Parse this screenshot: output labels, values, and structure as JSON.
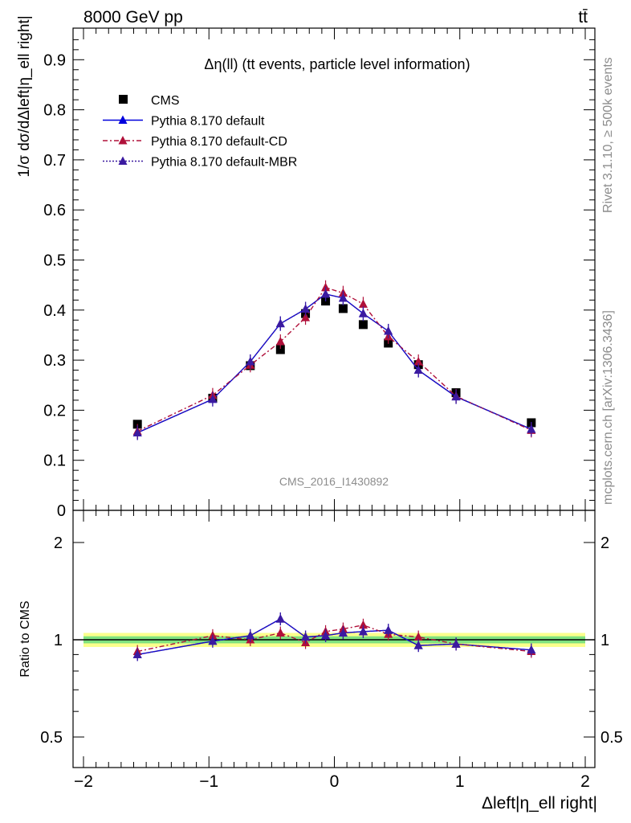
{
  "header": {
    "energy_label": "8000 GeV pp",
    "process_label": "tt̄"
  },
  "side_labels": {
    "rivet": "Rivet 3.1.10, ≥ 500k events",
    "mcplots": "mcplots.cern.ch [arXiv:1306.3436]"
  },
  "colors": {
    "data": "#000000",
    "default": "#0000dd",
    "cd": "#b0103a",
    "mbr": "#3b1aa0",
    "band_inner": "#7fe27f",
    "band_outer": "#fbff8c"
  },
  "chart_data": [
    {
      "type": "scatter",
      "title": "Δη(ll) (tt events, particle level information)",
      "analysis_label": "CMS_2016_I1430892",
      "ylabel": "1/σ dσ/dΔleft|η_ell right|",
      "xlim": [
        -2,
        2
      ],
      "ylim": [
        0,
        0.96
      ],
      "x_ticks": [
        "−2",
        "−1",
        "0",
        "1",
        "2"
      ],
      "y_ticks": [
        "0",
        "0.1",
        "0.2",
        "0.3",
        "0.4",
        "0.5",
        "0.6",
        "0.7",
        "0.8",
        "0.9"
      ],
      "legend_position": "top-left",
      "x": [
        -1.57,
        -0.97,
        -0.67,
        -0.43,
        -0.23,
        -0.07,
        0.07,
        0.23,
        0.43,
        0.67,
        0.97,
        1.57
      ],
      "series": [
        {
          "name": "CMS",
          "marker": "square",
          "values": [
            0.172,
            0.224,
            0.289,
            0.321,
            0.393,
            0.418,
            0.403,
            0.371,
            0.334,
            0.291,
            0.235,
            0.175
          ]
        },
        {
          "name": "Pythia 8.170 default",
          "marker": "triangle",
          "values": [
            0.155,
            0.222,
            0.297,
            0.373,
            0.402,
            0.432,
            0.424,
            0.393,
            0.358,
            0.28,
            0.227,
            0.162
          ]
        },
        {
          "name": "Pythia 8.170 default-CD",
          "marker": "triangle",
          "values": [
            0.158,
            0.23,
            0.29,
            0.337,
            0.385,
            0.445,
            0.434,
            0.412,
            0.347,
            0.297,
            0.228,
            0.16
          ]
        },
        {
          "name": "Pythia 8.170 default-MBR",
          "marker": "triangle",
          "values": [
            0.155,
            0.222,
            0.297,
            0.373,
            0.402,
            0.432,
            0.424,
            0.393,
            0.358,
            0.28,
            0.227,
            0.162
          ]
        }
      ]
    },
    {
      "type": "scatter",
      "ylabel": "Ratio to CMS",
      "xlabel": "Δleft|η_ell right|",
      "xlim": [
        -2,
        2
      ],
      "ylim": [
        0.4,
        2.3
      ],
      "y_ticks": [
        "0.5",
        "1",
        "2"
      ],
      "x": [
        -1.57,
        -0.97,
        -0.67,
        -0.43,
        -0.23,
        -0.07,
        0.07,
        0.23,
        0.43,
        0.67,
        0.97,
        1.57
      ],
      "series": [
        {
          "name": "Pythia 8.170 default",
          "values": [
            0.9,
            0.99,
            1.03,
            1.16,
            1.02,
            1.03,
            1.05,
            1.06,
            1.07,
            0.96,
            0.97,
            0.93
          ]
        },
        {
          "name": "Pythia 8.170 default-CD",
          "values": [
            0.92,
            1.03,
            1.0,
            1.05,
            0.98,
            1.06,
            1.08,
            1.11,
            1.04,
            1.02,
            0.97,
            0.92
          ]
        },
        {
          "name": "Pythia 8.170 default-MBR",
          "values": [
            0.9,
            0.99,
            1.03,
            1.16,
            1.02,
            1.03,
            1.05,
            1.06,
            1.07,
            0.96,
            0.97,
            0.93
          ]
        }
      ]
    }
  ]
}
